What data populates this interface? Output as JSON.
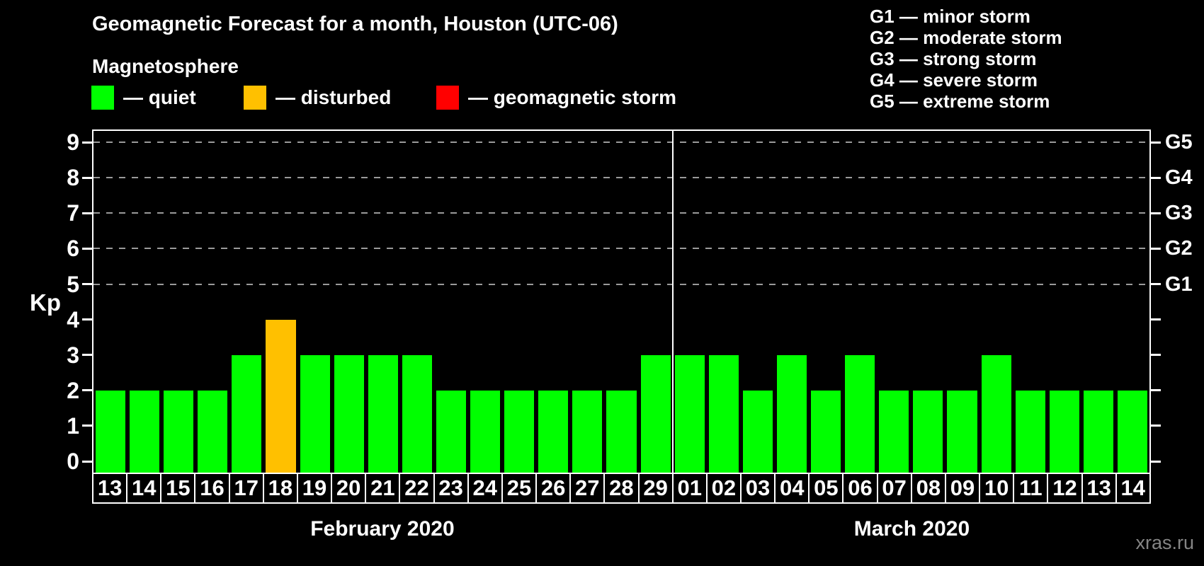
{
  "title": "Geomagnetic Forecast for a month, Houston (UTC-06)",
  "subtitle": "Magnetosphere",
  "legend": {
    "items": [
      {
        "key": "quiet",
        "label": "— quiet",
        "color": "#00ff00"
      },
      {
        "key": "disturbed",
        "label": "— disturbed",
        "color": "#ffc000"
      },
      {
        "key": "storm",
        "label": "— geomagnetic storm",
        "color": "#ff0000"
      }
    ]
  },
  "g_legend": {
    "items": [
      {
        "code": "G1",
        "label": "G1 — minor storm"
      },
      {
        "code": "G2",
        "label": "G2 — moderate storm"
      },
      {
        "code": "G3",
        "label": "G3 — strong storm"
      },
      {
        "code": "G4",
        "label": "G4 — severe storm"
      },
      {
        "code": "G5",
        "label": "G5 — extreme storm"
      }
    ]
  },
  "watermark": "xras.ru",
  "chart_data": {
    "type": "bar",
    "title": "Geomagnetic Forecast for a month, Houston (UTC-06)",
    "ylabel": "Kp",
    "ylim": [
      0,
      9
    ],
    "yticks": [
      0,
      1,
      2,
      3,
      4,
      5,
      6,
      7,
      8,
      9
    ],
    "gridlines_at": [
      5,
      6,
      7,
      8,
      9
    ],
    "grid_style": "dashed",
    "legend_position": "top",
    "right_axis": [
      {
        "value": 5,
        "label": "G1"
      },
      {
        "value": 6,
        "label": "G2"
      },
      {
        "value": 7,
        "label": "G3"
      },
      {
        "value": 8,
        "label": "G4"
      },
      {
        "value": 9,
        "label": "G5"
      }
    ],
    "status_colors": {
      "quiet": "#00ff00",
      "disturbed": "#ffc000",
      "storm": "#ff0000"
    },
    "months": [
      {
        "label": "February 2020",
        "days": [
          "13",
          "14",
          "15",
          "16",
          "17",
          "18",
          "19",
          "20",
          "21",
          "22",
          "23",
          "24",
          "25",
          "26",
          "27",
          "28",
          "29"
        ],
        "values": [
          2,
          2,
          2,
          2,
          3,
          4,
          3,
          3,
          3,
          3,
          2,
          2,
          2,
          2,
          2,
          2,
          3
        ],
        "status": [
          "quiet",
          "quiet",
          "quiet",
          "quiet",
          "quiet",
          "disturbed",
          "quiet",
          "quiet",
          "quiet",
          "quiet",
          "quiet",
          "quiet",
          "quiet",
          "quiet",
          "quiet",
          "quiet",
          "quiet"
        ]
      },
      {
        "label": "March 2020",
        "days": [
          "01",
          "02",
          "03",
          "04",
          "05",
          "06",
          "07",
          "08",
          "09",
          "10",
          "11",
          "12",
          "13",
          "14"
        ],
        "values": [
          3,
          3,
          2,
          3,
          2,
          3,
          2,
          2,
          2,
          3,
          2,
          2,
          2,
          2
        ],
        "status": [
          "quiet",
          "quiet",
          "quiet",
          "quiet",
          "quiet",
          "quiet",
          "quiet",
          "quiet",
          "quiet",
          "quiet",
          "quiet",
          "quiet",
          "quiet",
          "quiet"
        ]
      }
    ]
  }
}
